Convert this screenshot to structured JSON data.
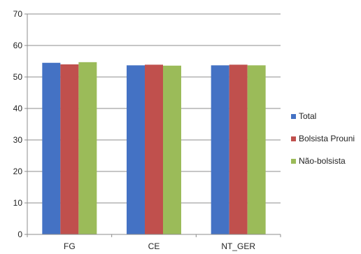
{
  "chart_data": {
    "type": "bar",
    "title": "",
    "xlabel": "",
    "ylabel": "",
    "categories": [
      "FG",
      "CE",
      "NT_GER"
    ],
    "series": [
      {
        "name": "Total",
        "values": [
          54.5,
          53.7,
          53.7
        ],
        "color": "#4472c4"
      },
      {
        "name": "Bolsista Prouni",
        "values": [
          54.0,
          53.9,
          53.9
        ],
        "color": "#c0504d"
      },
      {
        "name": "Não-bolsista",
        "values": [
          54.7,
          53.6,
          53.7
        ],
        "color": "#9bbb59"
      }
    ],
    "ylim": [
      0,
      70
    ],
    "yticks": [
      0,
      10,
      20,
      30,
      40,
      50,
      60,
      70
    ],
    "grid": true,
    "legend_position": "right"
  }
}
